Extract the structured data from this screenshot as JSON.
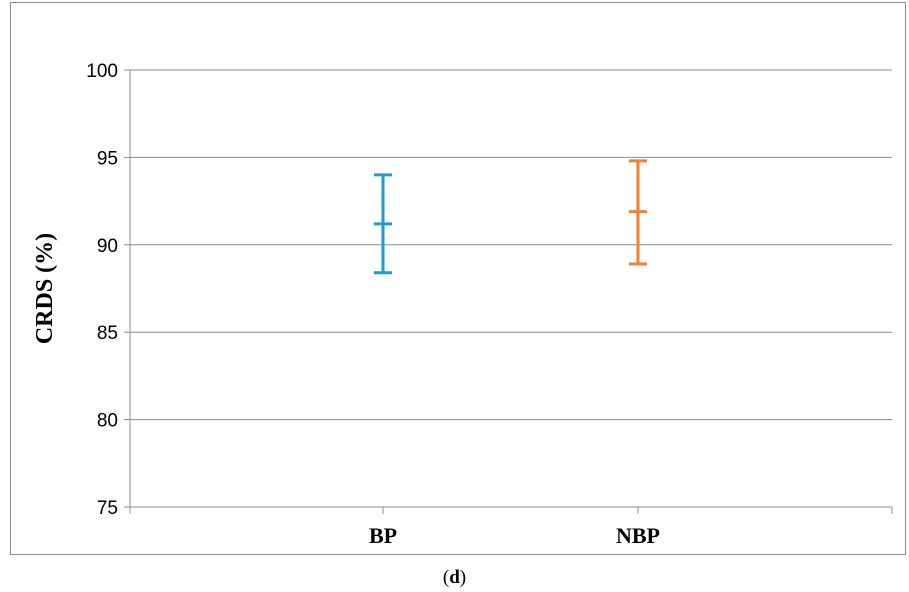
{
  "chart_data": {
    "type": "errorbar",
    "ylabel": "CRDS (%)",
    "ylim": [
      75,
      100
    ],
    "yticks": [
      75,
      80,
      85,
      90,
      95,
      100
    ],
    "grid": true,
    "categories": [
      "BP",
      "NBP"
    ],
    "points": [
      {
        "category": "BP",
        "mean": 91.2,
        "low": 88.4,
        "high": 94.0,
        "color": "#1f9ad6"
      },
      {
        "category": "NBP",
        "mean": 91.9,
        "low": 88.9,
        "high": 94.8,
        "color": "#f0812e"
      }
    ]
  },
  "caption": {
    "open": "(",
    "letter": "d",
    "close": ")"
  }
}
